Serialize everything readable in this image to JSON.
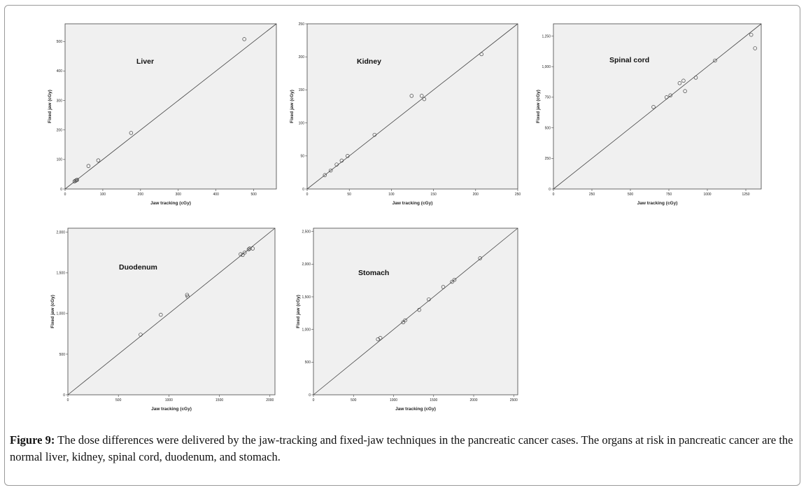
{
  "caption": {
    "label": "Figure 9:",
    "text": " The dose differences were delivered by the jaw-tracking and fixed-jaw techniques in the pancreatic cancer cases. The organs at risk in pancreatic cancer are the normal liver, kidney, spinal cord, duodenum, and stomach."
  },
  "chart_data": [
    {
      "type": "scatter",
      "title": "Liver",
      "xlabel": "Jaw tracking (cGy)",
      "ylabel": "Fixed jaw (cGy)",
      "xlim": [
        0,
        560
      ],
      "ylim": [
        0,
        560
      ],
      "xticks": [
        0,
        100,
        200,
        300,
        400,
        500
      ],
      "yticks": [
        0,
        100,
        200,
        300,
        400,
        500
      ],
      "xtick_labels": [
        "0",
        "100",
        "200",
        "300",
        "400",
        "500"
      ],
      "ytick_labels": [
        "0",
        "100",
        "200",
        "300",
        "400",
        "500"
      ],
      "points": [
        [
          25,
          26
        ],
        [
          28,
          28
        ],
        [
          30,
          30
        ],
        [
          32,
          31
        ],
        [
          62,
          78
        ],
        [
          88,
          97
        ],
        [
          175,
          190
        ],
        [
          475,
          508
        ]
      ],
      "identity_line": true
    },
    {
      "type": "scatter",
      "title": "Kidney",
      "xlabel": "Jaw tracking (cGy)",
      "ylabel": "Fixed jaw (cGy)",
      "xlim": [
        0,
        250
      ],
      "ylim": [
        0,
        250
      ],
      "xticks": [
        0,
        50,
        100,
        150,
        200,
        250
      ],
      "yticks": [
        0,
        50,
        100,
        150,
        200,
        250
      ],
      "xtick_labels": [
        "0",
        "50",
        "100",
        "150",
        "200",
        "250"
      ],
      "ytick_labels": [
        "0",
        "50",
        "100",
        "150",
        "200",
        "250"
      ],
      "points": [
        [
          21,
          21
        ],
        [
          28,
          28
        ],
        [
          35,
          37
        ],
        [
          41,
          43
        ],
        [
          48,
          50
        ],
        [
          80,
          82
        ],
        [
          124,
          141
        ],
        [
          136,
          141
        ],
        [
          139,
          136
        ],
        [
          207,
          204
        ]
      ],
      "identity_line": true
    },
    {
      "type": "scatter",
      "title": "Spinal cord",
      "xlabel": "Jaw tracking (cGy)",
      "ylabel": "Fixed jaw (cGy)",
      "xlim": [
        0,
        1350
      ],
      "ylim": [
        0,
        1350
      ],
      "xticks": [
        0,
        250,
        500,
        750,
        1000,
        1250
      ],
      "yticks": [
        0,
        250,
        500,
        750,
        1000,
        1250
      ],
      "xtick_labels": [
        "0",
        "250",
        "500",
        "750",
        "1000",
        "1250"
      ],
      "ytick_labels": [
        "0",
        "250",
        "500",
        "750",
        "1,000",
        "1,250"
      ],
      "points": [
        [
          650,
          670
        ],
        [
          735,
          750
        ],
        [
          760,
          765
        ],
        [
          820,
          865
        ],
        [
          845,
          885
        ],
        [
          855,
          800
        ],
        [
          925,
          910
        ],
        [
          1050,
          1050
        ],
        [
          1285,
          1260
        ],
        [
          1310,
          1150
        ]
      ],
      "identity_line": true
    },
    {
      "type": "scatter",
      "title": "Duodenum",
      "xlabel": "Jaw tracking (cGy)",
      "ylabel": "Fixed jaw (cGy)",
      "xlim": [
        0,
        2050
      ],
      "ylim": [
        0,
        2050
      ],
      "xticks": [
        0,
        500,
        1000,
        1500,
        2000
      ],
      "yticks": [
        0,
        500,
        1000,
        1500,
        2000
      ],
      "xtick_labels": [
        "0",
        "500",
        "1000",
        "1500",
        "2000"
      ],
      "ytick_labels": [
        "0",
        "500",
        "1,000",
        "1,500",
        "2,000"
      ],
      "points": [
        [
          720,
          740
        ],
        [
          920,
          985
        ],
        [
          1180,
          1230
        ],
        [
          1185,
          1210
        ],
        [
          1710,
          1730
        ],
        [
          1730,
          1720
        ],
        [
          1750,
          1750
        ],
        [
          1790,
          1790
        ],
        [
          1800,
          1800
        ],
        [
          1830,
          1800
        ]
      ],
      "identity_line": true
    },
    {
      "type": "scatter",
      "title": "Stomach",
      "xlabel": "Jaw tracking (cGy)",
      "ylabel": "Fixed jaw (cGy)",
      "xlim": [
        0,
        2550
      ],
      "ylim": [
        0,
        2550
      ],
      "xticks": [
        0,
        500,
        1000,
        1500,
        2000,
        2500
      ],
      "yticks": [
        0,
        500,
        1000,
        1500,
        2000,
        2500
      ],
      "xtick_labels": [
        "0",
        "500",
        "1000",
        "1500",
        "2000",
        "2500"
      ],
      "ytick_labels": [
        "0",
        "500",
        "1,000",
        "1,500",
        "2,000",
        "2,500"
      ],
      "points": [
        [
          805,
          850
        ],
        [
          835,
          870
        ],
        [
          1120,
          1110
        ],
        [
          1145,
          1140
        ],
        [
          1320,
          1300
        ],
        [
          1440,
          1460
        ],
        [
          1620,
          1650
        ],
        [
          1730,
          1730
        ],
        [
          1760,
          1760
        ],
        [
          2080,
          2090
        ]
      ],
      "identity_line": true
    }
  ]
}
